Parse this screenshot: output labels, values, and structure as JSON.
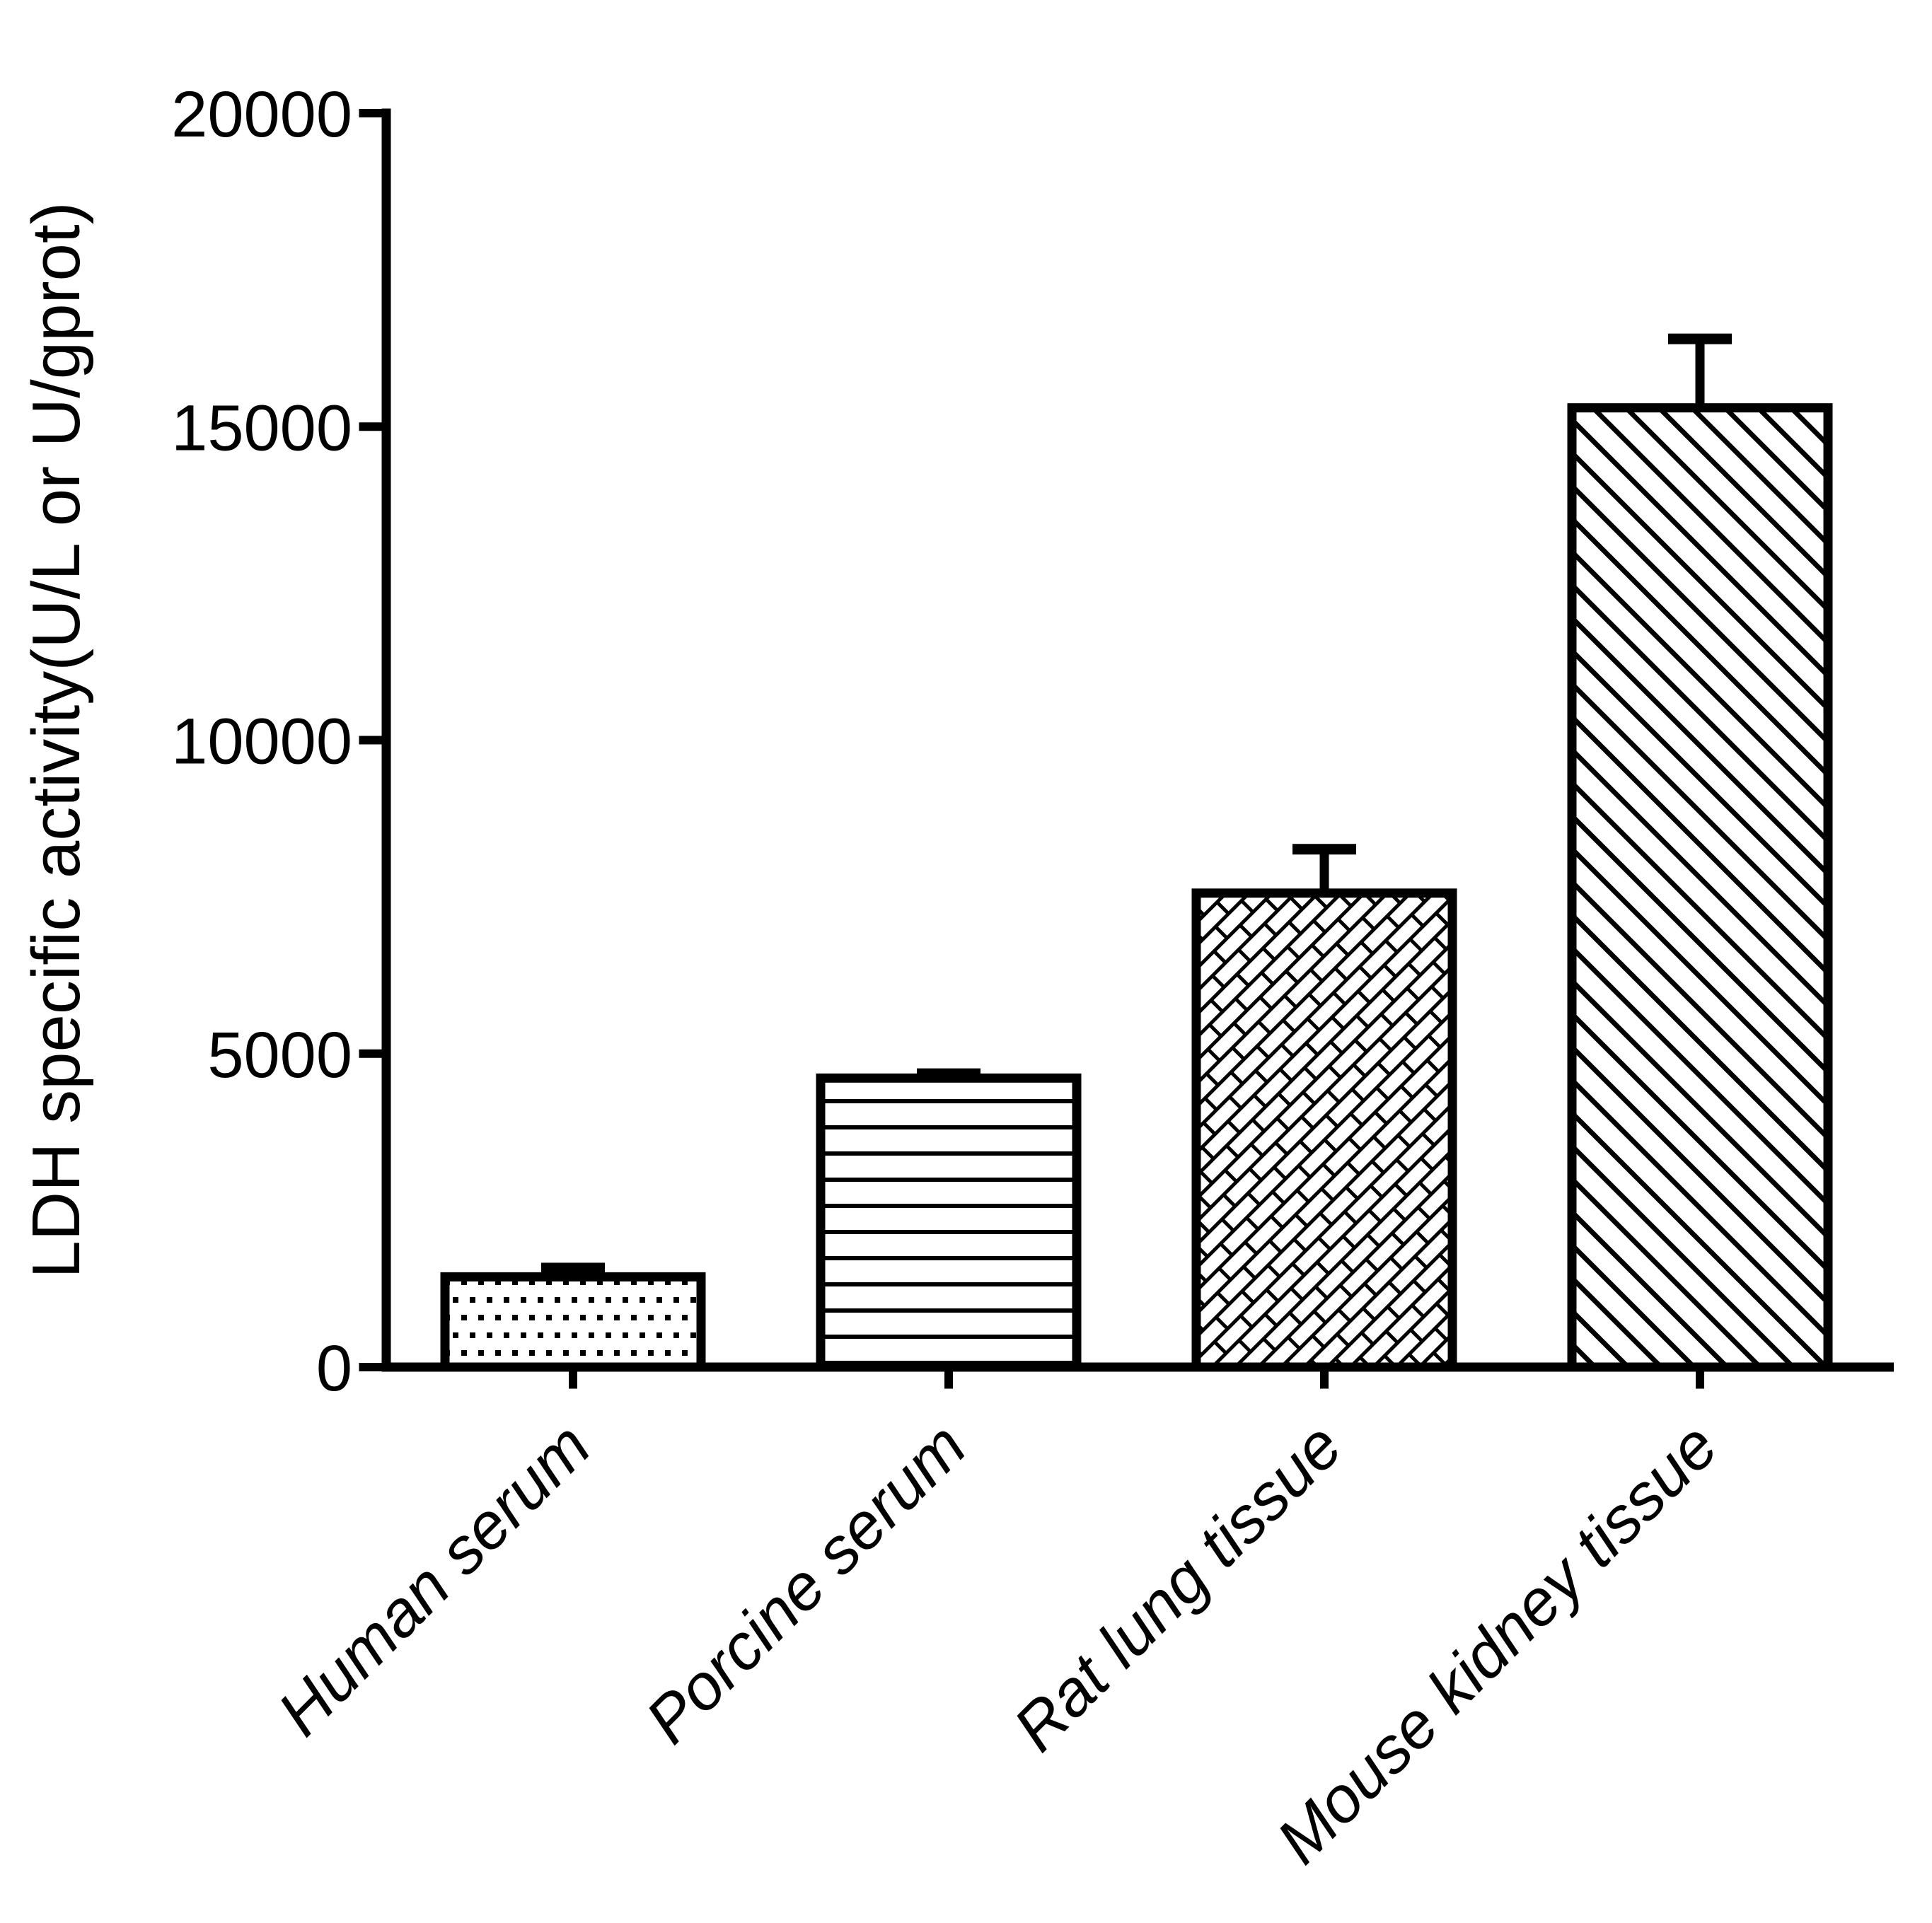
{
  "figure": {
    "background_color": "#ffffff",
    "ink_color": "#000000"
  },
  "chart_data": {
    "type": "bar",
    "title": "",
    "xlabel": "",
    "ylabel": "LDH specific activity(U/L or U/gprot)",
    "categories": [
      "Human serum",
      "Porcine serum",
      "Rat lung tissue",
      "Mouse kidney tissue"
    ],
    "values": [
      1440,
      4610,
      7560,
      15300
    ],
    "errors_plus": [
      140,
      70,
      700,
      1100
    ],
    "error_bars": "plus-SD-with-caps",
    "ylim": [
      0,
      20000
    ],
    "yticks": [
      0,
      5000,
      10000,
      15000,
      20000
    ],
    "bar_fill": "#ffffff",
    "bar_outline": "#000000",
    "bar_patterns": [
      "dots",
      "horizontal-lines",
      "diagonal-bricks",
      "diagonal-lines"
    ],
    "x_tick_label_style": "italic, rotated 45 degrees",
    "grid": false,
    "legend": "none"
  }
}
